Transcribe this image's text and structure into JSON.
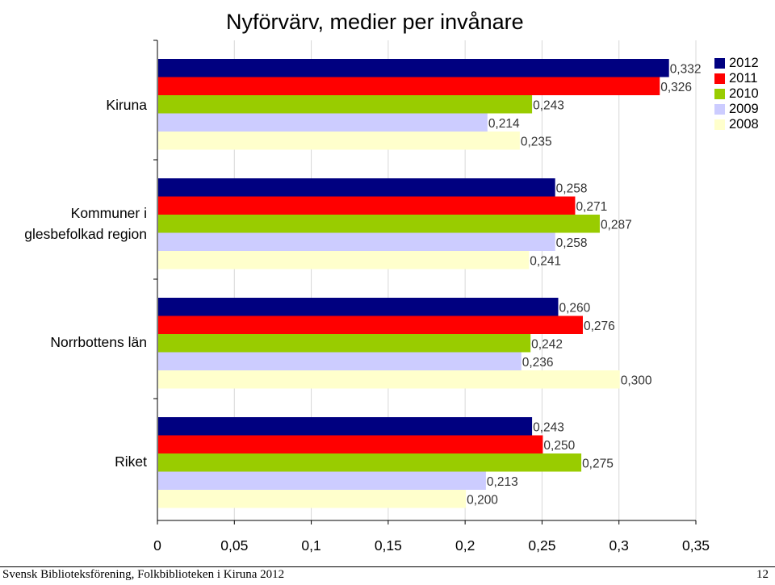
{
  "chart_data": {
    "type": "bar",
    "orientation": "horizontal",
    "title": "Nyförvärv, medier per invånare",
    "categories": [
      "Kiruna",
      "Kommuner i glesbefolkad region",
      "Norrbottens län",
      "Riket"
    ],
    "series": [
      {
        "name": "2012",
        "color": "#000080",
        "values": [
          0.332,
          0.258,
          0.26,
          0.243
        ],
        "labels": [
          "0,332",
          "0,258",
          "0,260",
          "0,243"
        ]
      },
      {
        "name": "2011",
        "color": "#ff0000",
        "values": [
          0.326,
          0.271,
          0.276,
          0.25
        ],
        "labels": [
          "0,326",
          "0,271",
          "0,276",
          "0,250"
        ]
      },
      {
        "name": "2010",
        "color": "#99cc00",
        "values": [
          0.243,
          0.287,
          0.242,
          0.275
        ],
        "labels": [
          "0,243",
          "0,287",
          "0,242",
          "0,275"
        ]
      },
      {
        "name": "2009",
        "color": "#ccccff",
        "values": [
          0.214,
          0.258,
          0.236,
          0.213
        ],
        "labels": [
          "0,214",
          "0,258",
          "0,236",
          "0,213"
        ]
      },
      {
        "name": "2008",
        "color": "#ffffcc",
        "values": [
          0.235,
          0.241,
          0.3,
          0.2
        ],
        "labels": [
          "0,235",
          "0,241",
          "0,300",
          "0,200"
        ]
      }
    ],
    "xlim": [
      0,
      0.35
    ],
    "xticks": [
      0,
      0.05,
      0.1,
      0.15,
      0.2,
      0.25,
      0.3,
      0.35
    ],
    "xtick_labels": [
      "0",
      "0,05",
      "0,1",
      "0,15",
      "0,2",
      "0,25",
      "0,3",
      "0,35"
    ],
    "grid": true,
    "legend_position": "right"
  },
  "footer": {
    "left": "Svensk Biblioteksförening, Folkbiblioteken i Kiruna 2012",
    "right": "12"
  }
}
